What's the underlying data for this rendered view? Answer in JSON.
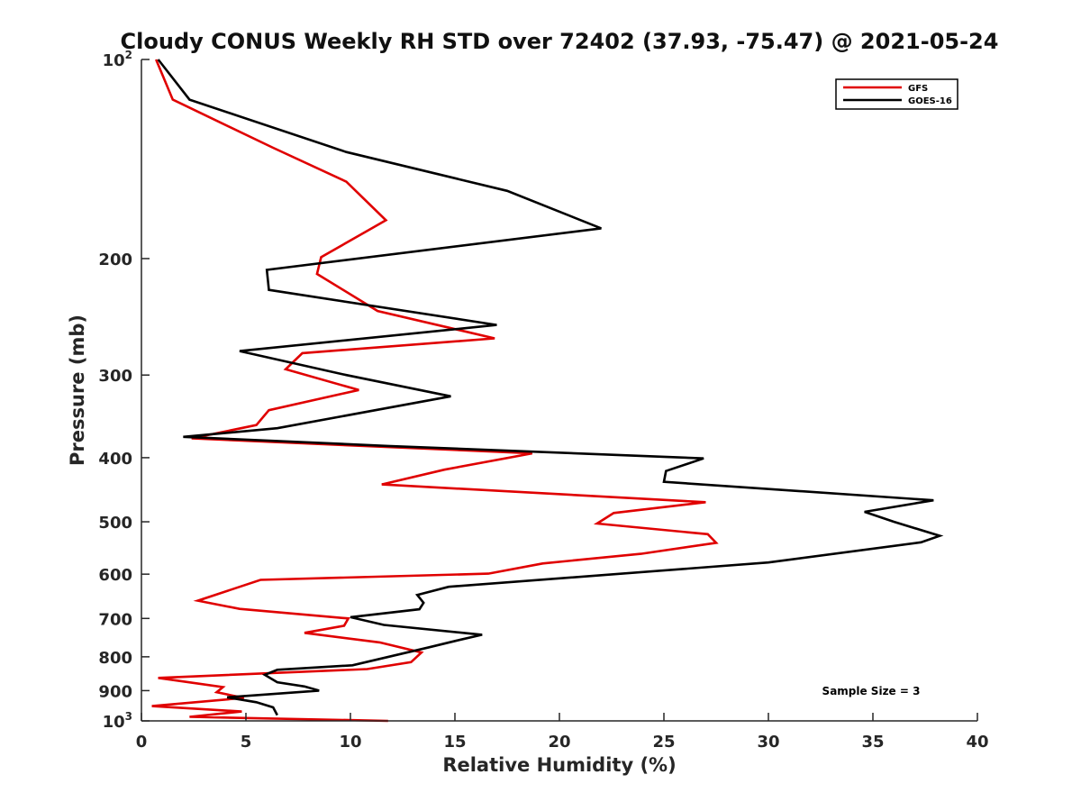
{
  "chart_data": {
    "type": "line",
    "title": "Cloudy CONUS Weekly RH STD over 72402 (37.93, -75.47) @ 2021-05-24",
    "xlabel": "Relative Humidity (%)",
    "ylabel": "Pressure (mb)",
    "xlim": [
      0,
      40
    ],
    "ylim": [
      100,
      1000
    ],
    "y_scale": "log",
    "y_reversed": true,
    "x_ticks": [
      "0",
      "5",
      "10",
      "15",
      "20",
      "25",
      "30",
      "35",
      "40"
    ],
    "x_tick_values": [
      0,
      5,
      10,
      15,
      20,
      25,
      30,
      35,
      40
    ],
    "y_ticks": [
      {
        "value": 100,
        "base": "10",
        "exp": "2"
      },
      {
        "value": 200,
        "label": "200"
      },
      {
        "value": 300,
        "label": "300"
      },
      {
        "value": 400,
        "label": "400"
      },
      {
        "value": 500,
        "label": "500"
      },
      {
        "value": 600,
        "label": "600"
      },
      {
        "value": 700,
        "label": "700"
      },
      {
        "value": 800,
        "label": "800"
      },
      {
        "value": 900,
        "label": "900"
      },
      {
        "value": 1000,
        "base": "10",
        "exp": "3"
      }
    ],
    "grid": false,
    "legend_position": "top-right",
    "annotation": "Sample Size = 3",
    "series": [
      {
        "name": "GFS",
        "color": "#e00000",
        "x": [
          0.7,
          1.5,
          6.3,
          9.8,
          11.7,
          8.6,
          8.4,
          11.3,
          16.9,
          7.7,
          6.9,
          10.4,
          6.1,
          5.5,
          2.4,
          18.7,
          14.5,
          11.5,
          27.0,
          22.6,
          21.8,
          27.1,
          27.5,
          23.9,
          19.2,
          16.6,
          5.7,
          2.7,
          4.7,
          9.9,
          9.7,
          7.8,
          11.4,
          13.4,
          12.9,
          10.8,
          0.8,
          3.9,
          3.6,
          4.9,
          0.5,
          4.8,
          2.3,
          11.8
        ],
        "y": [
          100,
          115,
          136,
          153,
          175,
          199,
          211,
          240,
          264,
          278,
          294,
          316,
          339,
          357,
          374,
          394,
          417,
          439,
          467,
          485,
          503,
          522,
          538,
          559,
          578,
          599,
          612,
          658,
          677,
          700,
          718,
          736,
          761,
          788,
          815,
          835,
          861,
          889,
          905,
          923,
          950,
          968,
          986,
          1000
        ]
      },
      {
        "name": "GOES-16",
        "color": "#000000",
        "x": [
          0.8,
          2.3,
          9.8,
          17.5,
          22.0,
          6.0,
          6.1,
          17.0,
          4.7,
          9.8,
          14.8,
          6.5,
          2.0,
          11.8,
          26.9,
          25.1,
          25.0,
          37.9,
          34.6,
          36.0,
          38.2,
          37.3,
          30.0,
          14.7,
          13.2,
          13.5,
          13.3,
          10.0,
          11.6,
          16.3,
          15.1,
          13.7,
          10.1,
          6.5,
          5.9,
          6.5,
          7.8,
          8.5,
          4.1,
          5.5,
          6.3,
          6.5
        ],
        "y": [
          100,
          115,
          138,
          158,
          180,
          208,
          223,
          252,
          276,
          300,
          323,
          361,
          372,
          384,
          401,
          419,
          435,
          464,
          483,
          500,
          525,
          537,
          576,
          627,
          645,
          663,
          678,
          697,
          716,
          741,
          756,
          775,
          824,
          837,
          852,
          874,
          887,
          900,
          921,
          937,
          954,
          980
        ]
      }
    ]
  }
}
